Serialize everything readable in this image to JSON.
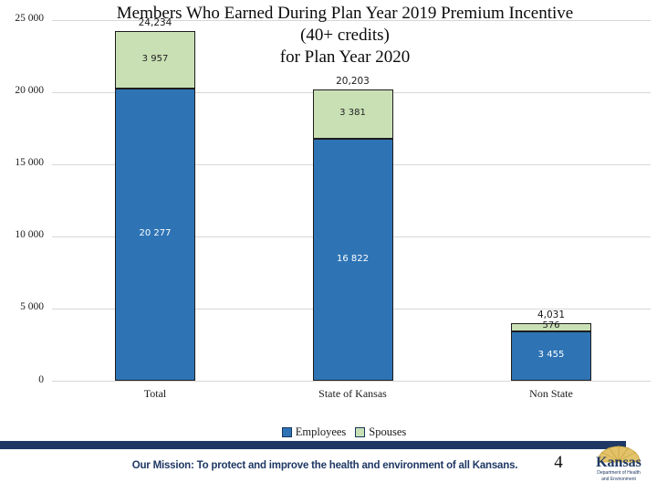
{
  "title": {
    "lines": [
      "Members Who Earned During Plan Year 2019 Premium Incentive",
      "(40+ credits)",
      "for Plan Year 2020"
    ]
  },
  "chart_data": {
    "type": "bar",
    "stacked": true,
    "title": "Members Who Earned During Plan Year 2019 Premium Incentive (40+ credits) for Plan Year 2020",
    "categories": [
      "Total",
      "State of Kansas",
      "Non State"
    ],
    "series": [
      {
        "name": "Employees",
        "color": "#2e74b5",
        "values": [
          20277,
          16822,
          3455
        ],
        "labels": [
          "20 277",
          "16 822",
          "3 455"
        ]
      },
      {
        "name": "Spouses",
        "color": "#c9e0b5",
        "values": [
          3957,
          3381,
          576
        ],
        "labels": [
          "3 957",
          "3 381",
          "576"
        ]
      }
    ],
    "totals": [
      24234,
      20203,
      4031
    ],
    "total_labels": [
      "24,234",
      "20,203",
      "4,031"
    ],
    "y_ticks": [
      "0",
      "5 000",
      "10 000",
      "15 000",
      "20 000",
      "25 000"
    ],
    "ylim": [
      0,
      25000
    ],
    "grid": true,
    "legend_position": "bottom"
  },
  "footer": {
    "mission": "Our Mission: To protect and improve the health and environment of all Kansans.",
    "page_number": "4",
    "logo": {
      "name": "Kansas",
      "line1": "Department of Health",
      "line2": "and Environment"
    }
  },
  "colors": {
    "bar_blue": "#2e74b5",
    "bar_green": "#c9e0b5",
    "navy": "#1f3864",
    "gold": "#e2c36a",
    "gridline": "#d7d7d7"
  }
}
